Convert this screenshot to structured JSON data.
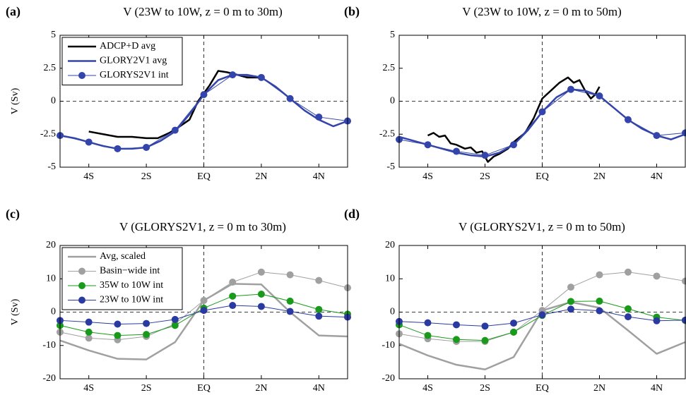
{
  "chart_data": [
    {
      "type": "line",
      "panel_label": "(a)",
      "title": "V (23W to 10W, z = 0 m to 30m)",
      "ylabel": "V (Sv)",
      "legend": "upper left",
      "xlim": [
        -5,
        5
      ],
      "ylim": [
        -5,
        5
      ],
      "xticks": [
        {
          "value": -4,
          "label": "4S"
        },
        {
          "value": -2,
          "label": "2S"
        },
        {
          "value": 0,
          "label": "EQ"
        },
        {
          "value": 2,
          "label": "2N"
        },
        {
          "value": 4,
          "label": "4N"
        }
      ],
      "yticks": [
        5,
        2.5,
        0,
        -2.5,
        -5
      ],
      "series": [
        {
          "name": "ADCP+D avg",
          "color": "#000000",
          "mode": "line",
          "width": 2.5,
          "x": [
            -4,
            -3.5,
            -3,
            -2.5,
            -2,
            -1.6,
            -1.2,
            -0.9,
            -0.5,
            -0.2,
            0.2,
            0.5,
            0.8,
            1,
            1.5,
            2
          ],
          "values": [
            -2.3,
            -2.5,
            -2.7,
            -2.7,
            -2.8,
            -2.8,
            -2.4,
            -2,
            -1.4,
            0,
            1.2,
            2.3,
            2.2,
            2.1,
            1.8,
            1.8
          ]
        },
        {
          "name": "GLORY2V1 avg",
          "color": "#3344aa",
          "mode": "line",
          "width": 2.5,
          "x": [
            -5,
            -4.5,
            -4,
            -3.5,
            -3,
            -2.5,
            -2,
            -1.5,
            -1,
            -0.5,
            0,
            0.5,
            1,
            1.5,
            2,
            2.5,
            3,
            3.5,
            4,
            4.5,
            5
          ],
          "values": [
            -2.6,
            -2.8,
            -3.1,
            -3.4,
            -3.6,
            -3.6,
            -3.5,
            -3.0,
            -2.3,
            -1.0,
            0.5,
            1.6,
            2.0,
            2.0,
            1.8,
            1.1,
            0.2,
            -0.7,
            -1.4,
            -1.9,
            -1.5
          ]
        },
        {
          "name": "GLORYS2V1 int",
          "color": "#3344aa",
          "mode": "line+markers",
          "width": 1,
          "x": [
            -5,
            -4,
            -3,
            -2,
            -1,
            0,
            1,
            2,
            3,
            4,
            5
          ],
          "values": [
            -2.6,
            -3.1,
            -3.6,
            -3.5,
            -2.2,
            0.5,
            2.0,
            1.8,
            0.2,
            -1.2,
            -1.5
          ]
        }
      ]
    },
    {
      "type": "line",
      "panel_label": "(b)",
      "title": "V (23W to 10W, z = 0 m to 50m)",
      "xlim": [
        -5,
        5
      ],
      "ylim": [
        -5,
        5
      ],
      "xticks": [
        {
          "value": -4,
          "label": "4S"
        },
        {
          "value": -2,
          "label": "2S"
        },
        {
          "value": 0,
          "label": "EQ"
        },
        {
          "value": 2,
          "label": "2N"
        },
        {
          "value": 4,
          "label": "4N"
        }
      ],
      "yticks": [
        5,
        2.5,
        0,
        -2.5,
        -5
      ],
      "series": [
        {
          "name": "ADCP+D avg",
          "color": "#000000",
          "mode": "line",
          "width": 2.5,
          "x": [
            -4,
            -3.8,
            -3.6,
            -3.4,
            -3.2,
            -3,
            -2.7,
            -2.5,
            -2.3,
            -2.1,
            -1.9,
            -1.7,
            -1.5,
            -1.2,
            -1,
            -0.6,
            -0.3,
            0,
            0.3,
            0.6,
            0.9,
            1.1,
            1.3,
            1.5,
            1.7,
            1.85,
            2
          ],
          "values": [
            -2.6,
            -2.4,
            -2.7,
            -2.6,
            -3.2,
            -3.3,
            -3.6,
            -3.5,
            -3.9,
            -3.8,
            -4.6,
            -4.2,
            -4.0,
            -3.6,
            -3.1,
            -2.4,
            -1.3,
            0.2,
            0.8,
            1.4,
            1.8,
            1.4,
            1.6,
            0.8,
            0.2,
            0.5,
            1.1
          ]
        },
        {
          "name": "GLORY2V1 avg",
          "color": "#3344aa",
          "mode": "line",
          "width": 2.5,
          "x": [
            -5,
            -4.5,
            -4,
            -3.5,
            -3,
            -2.5,
            -2,
            -1.5,
            -1,
            -0.5,
            0,
            0.5,
            1,
            1.5,
            2,
            2.5,
            3,
            3.5,
            4,
            4.5,
            5
          ],
          "values": [
            -2.7,
            -3.0,
            -3.3,
            -3.6,
            -3.9,
            -4.1,
            -4.2,
            -3.9,
            -3.3,
            -2.2,
            -0.8,
            0.3,
            0.9,
            0.8,
            0.4,
            -0.5,
            -1.4,
            -2.1,
            -2.6,
            -2.9,
            -2.5
          ]
        },
        {
          "name": "GLORYS2V1 int",
          "color": "#3344aa",
          "mode": "line+markers",
          "width": 1,
          "x": [
            -5,
            -4,
            -3,
            -2,
            -1,
            0,
            1,
            2,
            3,
            4,
            5
          ],
          "values": [
            -2.9,
            -3.3,
            -3.8,
            -4.1,
            -3.3,
            -0.8,
            0.9,
            0.4,
            -1.4,
            -2.6,
            -2.4
          ]
        }
      ]
    },
    {
      "type": "line",
      "panel_label": "(c)",
      "title": "V (GLORYS2V1,  z = 0 m to 30m)",
      "ylabel": "V (Sv)",
      "legend": "upper left",
      "xlim": [
        -5,
        5
      ],
      "ylim": [
        -20,
        20
      ],
      "xticks": [
        {
          "value": -4,
          "label": "4S"
        },
        {
          "value": -2,
          "label": "2S"
        },
        {
          "value": 0,
          "label": "EQ"
        },
        {
          "value": 2,
          "label": "2N"
        },
        {
          "value": 4,
          "label": "4N"
        }
      ],
      "yticks": [
        20,
        10,
        0,
        -10,
        -20
      ],
      "series": [
        {
          "name": "Avg, scaled",
          "color": "#a0a0a0",
          "mode": "line",
          "width": 2.5,
          "x": [
            -5,
            -4,
            -3,
            -2,
            -1,
            0,
            1,
            2,
            3,
            4,
            5
          ],
          "values": [
            -8.5,
            -11.5,
            -14,
            -14.2,
            -9,
            3.5,
            8.5,
            8.3,
            0,
            -7,
            -7.3
          ]
        },
        {
          "name": "Basin−wide int",
          "color": "#a0a0a0",
          "mode": "line+markers",
          "width": 1,
          "x": [
            -5,
            -4,
            -3,
            -2,
            -1,
            0,
            1,
            2,
            3,
            4,
            5
          ],
          "values": [
            -6,
            -7.8,
            -8.3,
            -7.3,
            -3.5,
            3.5,
            9,
            12,
            11.2,
            9.5,
            7.3
          ]
        },
        {
          "name": "35W to 10W int",
          "color": "#1a9a1a",
          "mode": "line+markers",
          "width": 1,
          "x": [
            -5,
            -4,
            -3,
            -2,
            -1,
            0,
            1,
            2,
            3,
            4,
            5
          ],
          "values": [
            -4,
            -6,
            -7,
            -6.7,
            -4,
            1.2,
            4.8,
            5.4,
            3.3,
            0.8,
            -0.6
          ]
        },
        {
          "name": "23W to 10W int",
          "color": "#2a3aa0",
          "mode": "line+markers",
          "width": 1,
          "x": [
            -5,
            -4,
            -3,
            -2,
            -1,
            0,
            1,
            2,
            3,
            4,
            5
          ],
          "values": [
            -2.5,
            -3,
            -3.6,
            -3.4,
            -2.2,
            0.5,
            2.0,
            1.7,
            0.2,
            -1.2,
            -1.5
          ]
        }
      ]
    },
    {
      "type": "line",
      "panel_label": "(d)",
      "title": "V (GLORYS2V1,  z = 0 m to 50m)",
      "xlim": [
        -5,
        5
      ],
      "ylim": [
        -20,
        20
      ],
      "xticks": [
        {
          "value": -4,
          "label": "4S"
        },
        {
          "value": -2,
          "label": "2S"
        },
        {
          "value": 0,
          "label": "EQ"
        },
        {
          "value": 2,
          "label": "2N"
        },
        {
          "value": 4,
          "label": "4N"
        }
      ],
      "yticks": [
        20,
        10,
        0,
        -10,
        -20
      ],
      "series": [
        {
          "name": "Avg, scaled",
          "color": "#a0a0a0",
          "mode": "line",
          "width": 2.5,
          "x": [
            -5,
            -4,
            -3,
            -2,
            -1,
            0,
            1,
            2,
            3,
            4,
            5
          ],
          "values": [
            -9.5,
            -13,
            -15.8,
            -17.2,
            -13.5,
            0.5,
            3,
            1.3,
            -5.5,
            -12.5,
            -9
          ]
        },
        {
          "name": "Basin−wide int",
          "color": "#a0a0a0",
          "mode": "line+markers",
          "width": 1,
          "x": [
            -5,
            -4,
            -3,
            -2,
            -1,
            0,
            1,
            2,
            3,
            4,
            5
          ],
          "values": [
            -6.5,
            -8,
            -8.8,
            -8.8,
            -6,
            0.5,
            7.5,
            11.2,
            12,
            10.8,
            9.3
          ]
        },
        {
          "name": "35W to 10W int",
          "color": "#1a9a1a",
          "mode": "line+markers",
          "width": 1,
          "x": [
            -5,
            -4,
            -3,
            -2,
            -1,
            0,
            1,
            2,
            3,
            4,
            5
          ],
          "values": [
            -3.8,
            -7,
            -8.2,
            -8.5,
            -6,
            -1,
            3.2,
            3.3,
            1,
            -1.5,
            -2.5
          ]
        },
        {
          "name": "23W to 10W int",
          "color": "#2a3aa0",
          "mode": "line+markers",
          "width": 1,
          "x": [
            -5,
            -4,
            -3,
            -2,
            -1,
            0,
            1,
            2,
            3,
            4,
            5
          ],
          "values": [
            -2.8,
            -3.2,
            -3.8,
            -4.2,
            -3.3,
            -0.8,
            0.9,
            0.4,
            -1.4,
            -2.6,
            -2.4
          ]
        }
      ]
    }
  ]
}
